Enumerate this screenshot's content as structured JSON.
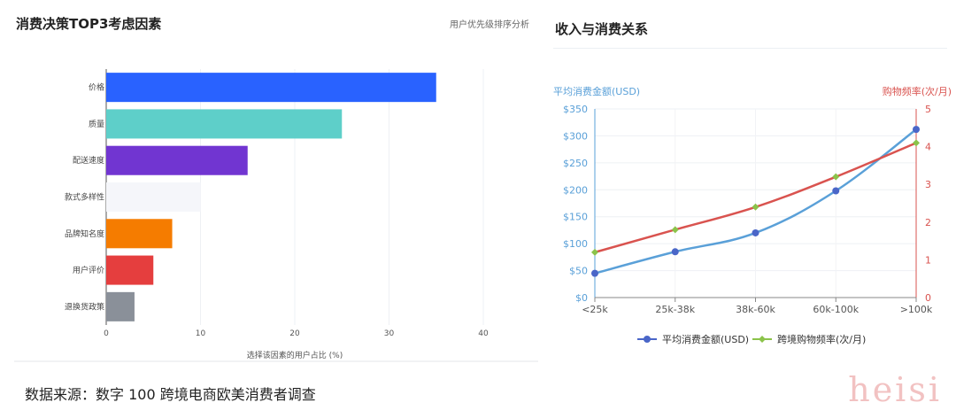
{
  "left": {
    "title": "消费决策TOP3考虑因素",
    "subtitle": "用户优先级排序分析"
  },
  "right": {
    "title": "收入与消费关系"
  },
  "source": "数据来源：数字 100 跨境电商欧美消费者调查",
  "watermark": "heisi",
  "chart_data": [
    {
      "type": "bar",
      "orientation": "horizontal",
      "title": "消费决策TOP3考虑因素",
      "subtitle": "用户优先级排序分析",
      "categories": [
        "价格",
        "质量",
        "配送速度",
        "款式多样性",
        "品牌知名度",
        "用户评价",
        "退换货政策"
      ],
      "values": [
        35,
        25,
        15,
        10,
        7,
        5,
        3
      ],
      "colors": [
        "#2962ff",
        "#5ecfc9",
        "#7135d1",
        "#f5f6fa",
        "#f57c00",
        "#e53e3e",
        "#8a9099"
      ],
      "xlabel": "选择该因素的用户占比 (%)",
      "xlim": [
        0,
        40
      ],
      "xticks": [
        "0",
        "10",
        "20",
        "30",
        "40"
      ],
      "grid": true
    },
    {
      "type": "line",
      "title": "收入与消费关系",
      "categories": [
        "<25k",
        "25k-38k",
        "38k-60k",
        "60k-100k",
        ">100k"
      ],
      "series": [
        {
          "name": "平均消费金额(USD)",
          "values": [
            45,
            85,
            120,
            198,
            312
          ],
          "axis": "left",
          "color": "#5aa0d8",
          "marker_color": "#4a66c8"
        },
        {
          "name": "跨境购物频率(次/月)",
          "values": [
            1.2,
            1.8,
            2.4,
            3.2,
            4.1
          ],
          "axis": "right",
          "color": "#d9534f",
          "marker_color": "#8bc34a"
        }
      ],
      "ylabel_left": "平均消费金额(USD)",
      "ylabel_right": "购物频率(次/月)",
      "ylim_left": [
        0,
        350
      ],
      "ylim_right": [
        0,
        5
      ],
      "yticks_left": [
        "$0",
        "$50",
        "$100",
        "$150",
        "$200",
        "$250",
        "$300",
        "$350"
      ],
      "yticks_right": [
        "0",
        "1",
        "2",
        "3",
        "4",
        "5"
      ],
      "legend": "bottom",
      "grid": true
    }
  ]
}
